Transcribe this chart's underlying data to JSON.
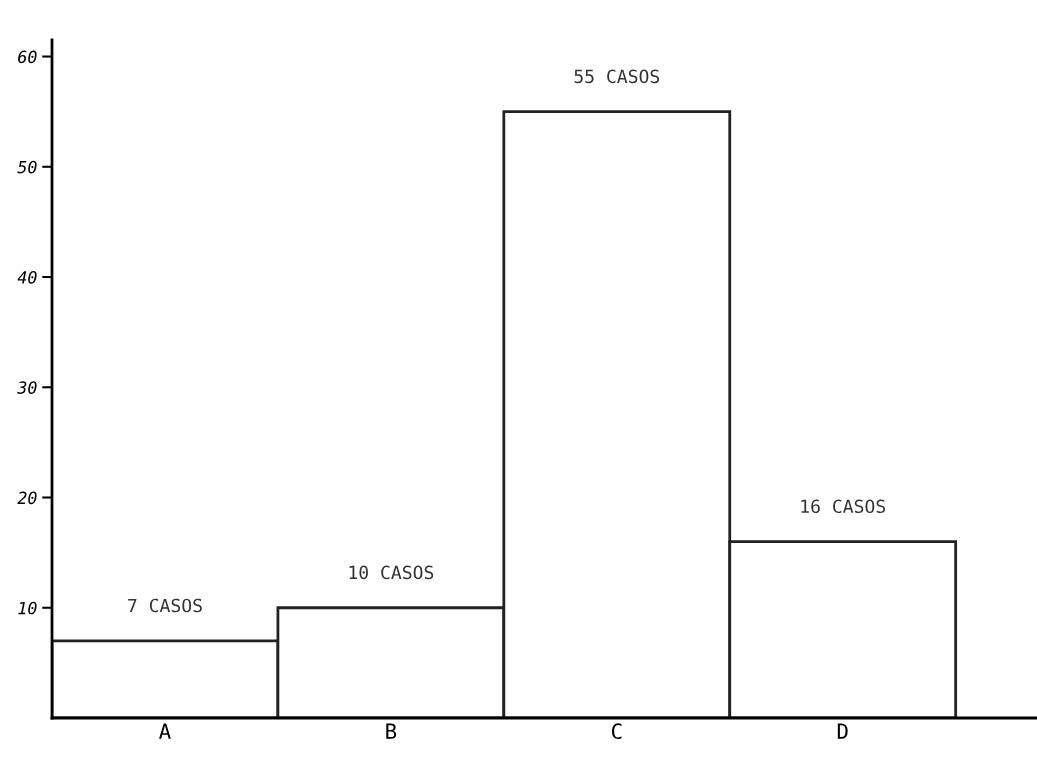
{
  "chart_data": {
    "type": "bar",
    "categories": [
      "A",
      "B",
      "C",
      "D"
    ],
    "values": [
      7,
      10,
      55,
      16
    ],
    "value_labels": [
      "7 CASOS",
      "10 CASOS",
      "55 CASOS",
      "16 CASOS"
    ],
    "color": "#ffffff",
    "ylim": [
      0,
      61.5
    ],
    "yticks": [
      10,
      20,
      30,
      40,
      50,
      60
    ],
    "grid": false
  }
}
